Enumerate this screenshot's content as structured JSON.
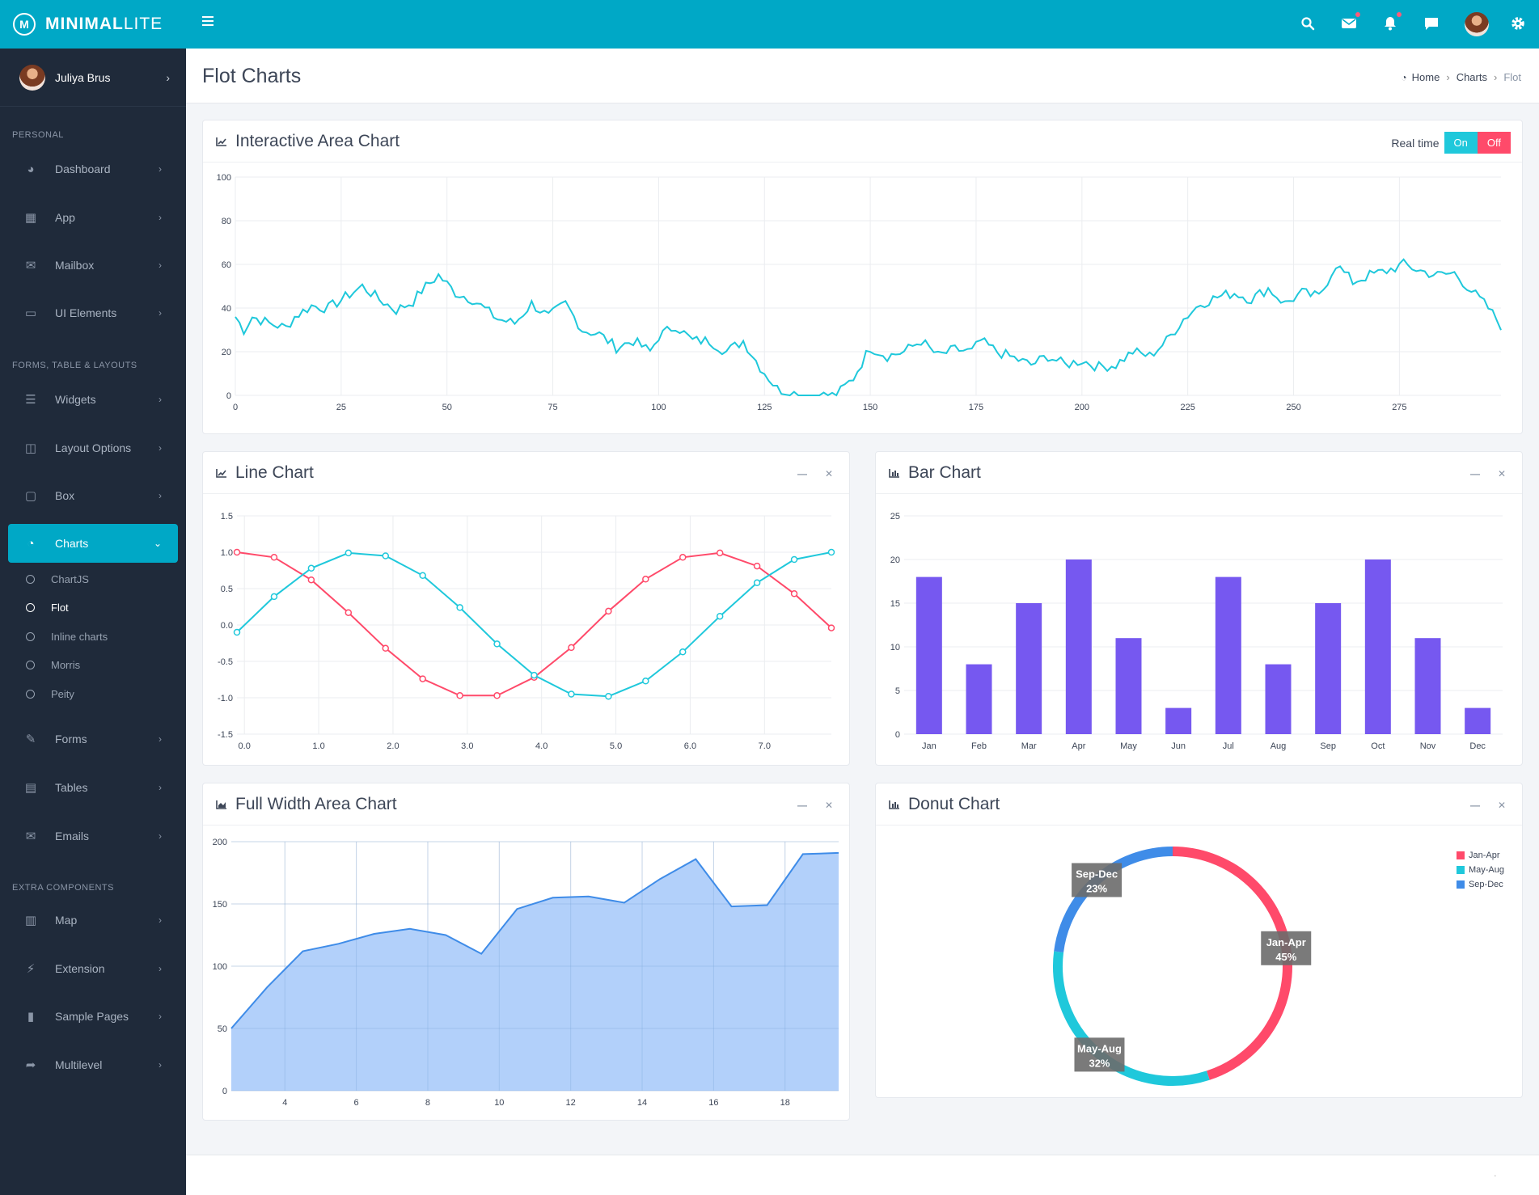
{
  "brand": {
    "name_bold": "MINIMAL",
    "name_light": "LITE",
    "logo_letter": "M"
  },
  "user": {
    "name": "Juliya Brus"
  },
  "sidebar": {
    "sections": [
      {
        "title": "PERSONAL",
        "items": [
          "Dashboard",
          "App",
          "Mailbox",
          "UI Elements"
        ]
      },
      {
        "title": "FORMS, TABLE & LAYOUTS",
        "items": [
          "Widgets",
          "Layout Options",
          "Box",
          "Charts",
          "Forms",
          "Tables",
          "Emails"
        ]
      },
      {
        "title": "EXTRA COMPONENTS",
        "items": [
          "Map",
          "Extension",
          "Sample Pages",
          "Multilevel"
        ]
      }
    ],
    "charts_sub": [
      "ChartJS",
      "Flot",
      "Inline charts",
      "Morris",
      "Peity"
    ],
    "active_item": "Charts",
    "current_sub": "Flot"
  },
  "page": {
    "title": "Flot Charts",
    "breadcrumb": [
      "Home",
      "Charts",
      "Flot"
    ]
  },
  "cards": {
    "interactive": {
      "title": "Interactive Area Chart",
      "realtime_label": "Real time",
      "on": "On",
      "off": "Off"
    },
    "line": {
      "title": "Line Chart"
    },
    "bar": {
      "title": "Bar Chart"
    },
    "fullarea": {
      "title": "Full Width Area Chart"
    },
    "donut": {
      "title": "Donut Chart"
    }
  },
  "chart_data": [
    {
      "type": "line",
      "title": "",
      "xlim": [
        0,
        299
      ],
      "ylim": [
        0,
        100
      ],
      "x_ticks": [
        0,
        25,
        50,
        75,
        100,
        125,
        150,
        175,
        200,
        225,
        250,
        275
      ],
      "y_ticks": [
        0,
        20,
        40,
        60,
        80,
        100
      ],
      "anchors_x": [
        0,
        2,
        4,
        8,
        12,
        14,
        18,
        22,
        26,
        30,
        34,
        38,
        42,
        44,
        48,
        52,
        56,
        58,
        62,
        66,
        70,
        74,
        78,
        82,
        86,
        90,
        94,
        98,
        100,
        104,
        108,
        112,
        116,
        120,
        124,
        128,
        132,
        134,
        138,
        142,
        146,
        148,
        150,
        154,
        158,
        162,
        166,
        170,
        174,
        176,
        180,
        184,
        188,
        192,
        196,
        200,
        204,
        208,
        212,
        216,
        220,
        224,
        228,
        232,
        236,
        240,
        244,
        248,
        252,
        256,
        260,
        264,
        268,
        272,
        276,
        280,
        284,
        288,
        292,
        296,
        299
      ],
      "anchors_y": [
        36,
        30,
        36,
        33,
        31,
        36,
        41,
        40,
        45,
        50,
        44,
        39,
        43,
        48,
        55,
        47,
        44,
        41,
        35,
        33,
        42,
        36,
        42,
        30,
        28,
        22,
        25,
        20,
        27,
        32,
        25,
        25,
        20,
        25,
        13,
        3,
        1,
        0,
        0,
        0,
        8,
        15,
        22,
        18,
        20,
        25,
        18,
        21,
        20,
        25,
        20,
        17,
        14,
        18,
        14,
        16,
        13,
        14,
        20,
        18,
        25,
        35,
        42,
        45,
        47,
        44,
        49,
        42,
        47,
        45,
        60,
        52,
        55,
        57,
        60,
        57,
        55,
        56,
        48,
        40,
        32
      ]
    },
    {
      "type": "line",
      "title": "",
      "xlim": [
        -0.1,
        7.9
      ],
      "ylim": [
        -1.5,
        1.5
      ],
      "x_ticks": [
        0.0,
        1.0,
        2.0,
        3.0,
        4.0,
        5.0,
        6.0,
        7.0
      ],
      "y_ticks": [
        -1.5,
        -1.0,
        -0.5,
        0.0,
        0.5,
        1.0,
        1.5
      ],
      "x_tick_labels": [
        "0.0",
        "1.0",
        "2.0",
        "3.0",
        "4.0",
        "5.0",
        "6.0",
        "7.0"
      ],
      "y_tick_labels": [
        "-1.5",
        "-1.0",
        "-0.5",
        "0.0",
        "0.5",
        "1.0",
        "1.5"
      ],
      "series": [
        {
          "color": "#ff4a6a",
          "x": [
            -0.1,
            0.4,
            0.9,
            1.4,
            1.9,
            2.4,
            2.9,
            3.4,
            3.9,
            4.4,
            4.9,
            5.4,
            5.9,
            6.4,
            6.9,
            7.4,
            7.9
          ],
          "y": [
            1.0,
            0.93,
            0.62,
            0.17,
            -0.32,
            -0.74,
            -0.97,
            -0.97,
            -0.72,
            -0.31,
            0.19,
            0.63,
            0.93,
            0.99,
            0.81,
            0.43,
            -0.04
          ]
        },
        {
          "color": "#1fc8db",
          "x": [
            -0.1,
            0.4,
            0.9,
            1.4,
            1.9,
            2.4,
            2.9,
            3.4,
            3.9,
            4.4,
            4.9,
            5.4,
            5.9,
            6.4,
            6.9,
            7.4,
            7.9
          ],
          "y": [
            -0.1,
            0.39,
            0.78,
            0.99,
            0.95,
            0.68,
            0.24,
            -0.26,
            -0.69,
            -0.95,
            -0.98,
            -0.77,
            -0.37,
            0.12,
            0.58,
            0.9,
            1.0
          ]
        }
      ]
    },
    {
      "type": "bar",
      "title": "",
      "color": "#7658f0",
      "categories": [
        "Jan",
        "Feb",
        "Mar",
        "Apr",
        "May",
        "Jun",
        "Jul",
        "Aug",
        "Sep",
        "Oct",
        "Nov",
        "Dec"
      ],
      "values": [
        18,
        8,
        15,
        20,
        11,
        3,
        18,
        8,
        15,
        20,
        11,
        3
      ],
      "ylim": [
        0,
        25
      ],
      "y_ticks": [
        0,
        5,
        10,
        15,
        20,
        25
      ]
    },
    {
      "type": "area",
      "title": "",
      "color": "#3f8ce8",
      "fill": "#aecdfa",
      "xlim": [
        2.5,
        19.5
      ],
      "ylim": [
        0,
        200
      ],
      "x_ticks": [
        4,
        6,
        8,
        10,
        12,
        14,
        16,
        18
      ],
      "y_ticks": [
        0,
        50,
        100,
        150,
        200
      ],
      "x": [
        2.5,
        3.5,
        4.5,
        5.5,
        6.5,
        7.5,
        8.5,
        9.5,
        10.5,
        11.5,
        12.5,
        13.5,
        14.5,
        15.5,
        16.5,
        17.5,
        18.5,
        19.5
      ],
      "y": [
        50,
        83,
        112,
        118,
        126,
        130,
        125,
        110,
        146,
        155,
        156,
        151,
        170,
        186,
        148,
        149,
        190,
        191
      ]
    },
    {
      "type": "pie",
      "title": "",
      "labels": [
        "Jan-Apr",
        "May-Aug",
        "Sep-Dec"
      ],
      "values": [
        45,
        32,
        23
      ],
      "colors": [
        "#ff4a6a",
        "#1fc8db",
        "#3f8ce8"
      ],
      "data_labels": [
        "45%",
        "32%",
        "23%"
      ],
      "legend": "top-right"
    }
  ]
}
